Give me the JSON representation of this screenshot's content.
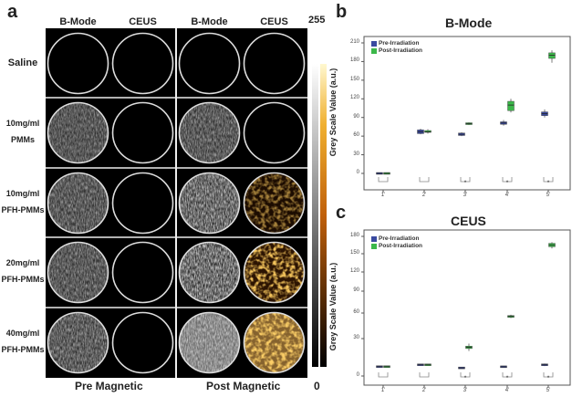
{
  "panel_a": {
    "letter": "a",
    "column_headers": [
      "B-Mode",
      "CEUS",
      "B-Mode",
      "CEUS"
    ],
    "rows": [
      {
        "label": [
          "Saline"
        ]
      },
      {
        "label": [
          "10mg/ml",
          "PMMs"
        ]
      },
      {
        "label": [
          "10mg/ml",
          "PFH-PMMs"
        ]
      },
      {
        "label": [
          "20mg/ml",
          "PFH-PMMs"
        ]
      },
      {
        "label": [
          "40mg/ml",
          "PFH-PMMs"
        ]
      }
    ],
    "group_labels": [
      "Pre Magnetic",
      "Post Magnetic"
    ],
    "colorbar": {
      "max_label": "255",
      "min_label": "0",
      "colors": [
        "#000000",
        "#ffffff",
        "#e08a10",
        "#fff4c0"
      ]
    }
  },
  "chart_data": [
    {
      "letter": "b",
      "type": "box",
      "title": "B-Mode",
      "ylabel": "Grey Scale Value (a.u.)",
      "categories": [
        "1'",
        "2'",
        "3'",
        "4'",
        "5'"
      ],
      "yticks": [
        0,
        30,
        60,
        90,
        120,
        150,
        180,
        210
      ],
      "ylim": [
        -15,
        225
      ],
      "legend_position": "top-left",
      "significance": [
        "",
        "",
        "*",
        "*",
        "*"
      ],
      "series": [
        {
          "name": "Pre-Irradiation",
          "color": "#3a4aa0",
          "boxes": [
            [
              0,
              0,
              0,
              0,
              0
            ],
            [
              63,
              64,
              67,
              70,
              72
            ],
            [
              60,
              61,
              63,
              65,
              66
            ],
            [
              77,
              79,
              81,
              83,
              86
            ],
            [
              90,
              93,
              96,
              99,
              103
            ]
          ]
        },
        {
          "name": "Post-Irradiation",
          "color": "#3cb84a",
          "boxes": [
            [
              0,
              0,
              0,
              0,
              0
            ],
            [
              64,
              66,
              67,
              69,
              71
            ],
            [
              78,
              79,
              80,
              81,
              82
            ],
            [
              98,
              101,
              110,
              116,
              120
            ],
            [
              178,
              185,
              190,
              194,
              198
            ]
          ]
        }
      ]
    },
    {
      "letter": "c",
      "type": "box",
      "title": "CEUS",
      "ylabel": "Grey Scale Value (a.u.)",
      "categories": [
        "1'",
        "2'",
        "3'",
        "4'",
        "5'"
      ],
      "yticks": [
        0,
        30,
        60,
        90,
        120,
        150,
        180
      ],
      "ylim": [
        -10,
        190
      ],
      "legend_position": "top-left",
      "significance": [
        "",
        "",
        "*",
        "*",
        "*"
      ],
      "series": [
        {
          "name": "Pre-Irradiation",
          "color": "#3a4aa0",
          "boxes": [
            [
              7,
              7.3,
              7.5,
              7.8,
              8
            ],
            [
              8.7,
              8.9,
              9,
              9.2,
              9.4
            ],
            [
              6,
              6.3,
              6.5,
              6.8,
              7
            ],
            [
              7,
              7.2,
              7.4,
              7.6,
              7.8
            ],
            [
              8,
              8.6,
              9,
              9.4,
              10
            ]
          ]
        },
        {
          "name": "Post-Irradiation",
          "color": "#3cb84a",
          "boxes": [
            [
              7,
              7.3,
              7.5,
              7.8,
              8
            ],
            [
              8.7,
              8.9,
              9,
              9.2,
              9.4
            ],
            [
              20,
              22,
              23,
              24,
              26
            ],
            [
              54,
              55,
              56,
              57,
              58
            ],
            [
              159,
              162,
              165,
              168,
              170
            ]
          ]
        }
      ]
    }
  ]
}
